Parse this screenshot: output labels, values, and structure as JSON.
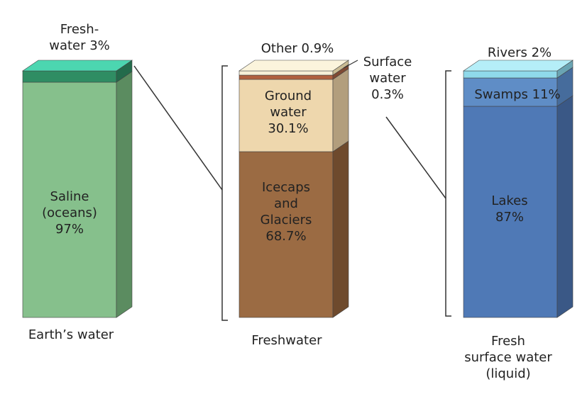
{
  "columns": [
    {
      "caption": [
        "Earth’s water"
      ],
      "segments": [
        {
          "name": "Saline (oceans)",
          "percent": 97,
          "label": [
            "Saline",
            "(oceans)",
            "97%"
          ],
          "face": "#86c08c",
          "side": "#5b8c60"
        },
        {
          "name": "Freshwater",
          "percent": 3,
          "label": [
            "Fresh-",
            "water 3%"
          ],
          "face": "#2f8d63",
          "side": "#236b4b",
          "top": "#4cd6b0"
        }
      ]
    },
    {
      "caption": [
        "Freshwater"
      ],
      "segments": [
        {
          "name": "Icecaps and Glaciers",
          "percent": 68.7,
          "label": [
            "Icecaps",
            "and",
            "Glaciers",
            "68.7%"
          ],
          "face": "#9b6b43",
          "side": "#6e4a2d"
        },
        {
          "name": "Ground water",
          "percent": 30.1,
          "label": [
            "Ground",
            "water",
            "30.1%"
          ],
          "face": "#eed7ad",
          "side": "#b29e7d"
        },
        {
          "name": "Surface water",
          "percent": 0.3,
          "label": [
            "Surface",
            "water",
            "0.3%"
          ],
          "face": "#b0603f",
          "side": "#7f4a33"
        },
        {
          "name": "Other",
          "percent": 0.9,
          "label": [
            "Other 0.9%"
          ],
          "face": "#f6efd8",
          "side": "#c9bb93",
          "top": "#fbf4dc"
        }
      ]
    },
    {
      "caption": [
        "Fresh",
        "surface water",
        "(liquid)"
      ],
      "segments": [
        {
          "name": "Lakes",
          "percent": 87,
          "label": [
            "Lakes",
            "87%"
          ],
          "face": "#4f79b6",
          "side": "#3a5886"
        },
        {
          "name": "Swamps",
          "percent": 11,
          "label": [
            "Swamps 11%"
          ],
          "face": "#5f8dc6",
          "side": "#466c9c"
        },
        {
          "name": "Rivers",
          "percent": 2,
          "label": [
            "Rivers 2%"
          ],
          "face": "#8fd9ea",
          "side": "#6aa4b3",
          "top": "#b5eef8"
        }
      ]
    }
  ]
}
